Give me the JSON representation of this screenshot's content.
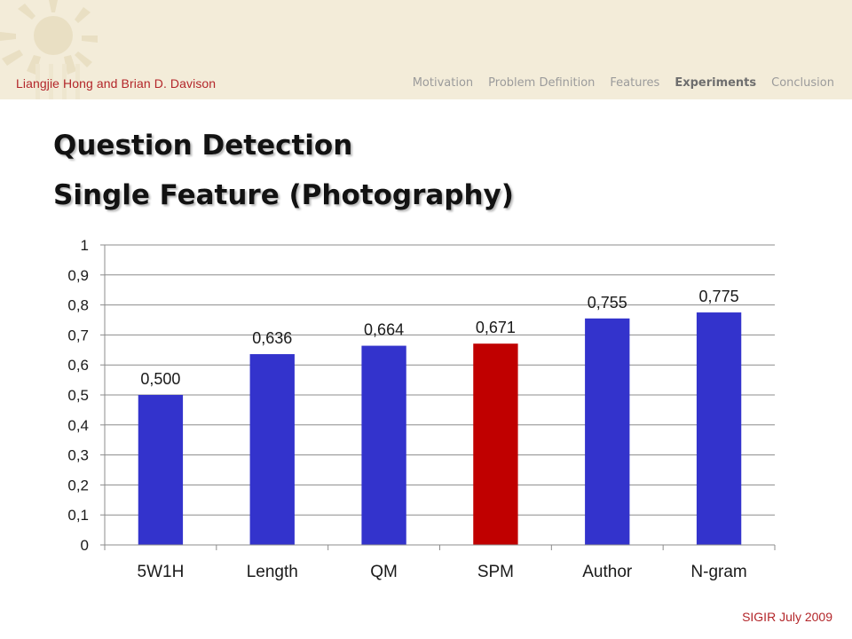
{
  "header": {
    "authors": "Liangjie Hong and Brian D. Davison",
    "nav": [
      {
        "label": "Motivation",
        "active": false
      },
      {
        "label": "Problem Definition",
        "active": false
      },
      {
        "label": "Features",
        "active": false
      },
      {
        "label": "Experiments",
        "active": true
      },
      {
        "label": "Conclusion",
        "active": false
      }
    ]
  },
  "slide": {
    "title_line1": "Question Detection",
    "title_line2": "Single Feature (Photography)"
  },
  "footer": {
    "venue": "SIGIR July 2009"
  },
  "colors": {
    "bar": "#3333cc",
    "highlight_bar": "#c00000",
    "accent": "#b3262a"
  },
  "chart_data": {
    "type": "bar",
    "categories": [
      "5W1H",
      "Length",
      "QM",
      "SPM",
      "Author",
      "N-gram"
    ],
    "values": [
      0.5,
      0.636,
      0.664,
      0.671,
      0.755,
      0.775
    ],
    "data_labels": [
      "0,500",
      "0,636",
      "0,664",
      "0,671",
      "0,755",
      "0,775"
    ],
    "ylim": [
      0,
      1
    ],
    "yticks": [
      0,
      0.1,
      0.2,
      0.3,
      0.4,
      0.5,
      0.6,
      0.7,
      0.8,
      0.9,
      1
    ],
    "ytick_labels": [
      "0",
      "0,1",
      "0,2",
      "0,3",
      "0,4",
      "0,5",
      "0,6",
      "0,7",
      "0,8",
      "0,9",
      "1"
    ],
    "highlight_category": "SPM",
    "grid": true,
    "title": "",
    "xlabel": "",
    "ylabel": ""
  }
}
